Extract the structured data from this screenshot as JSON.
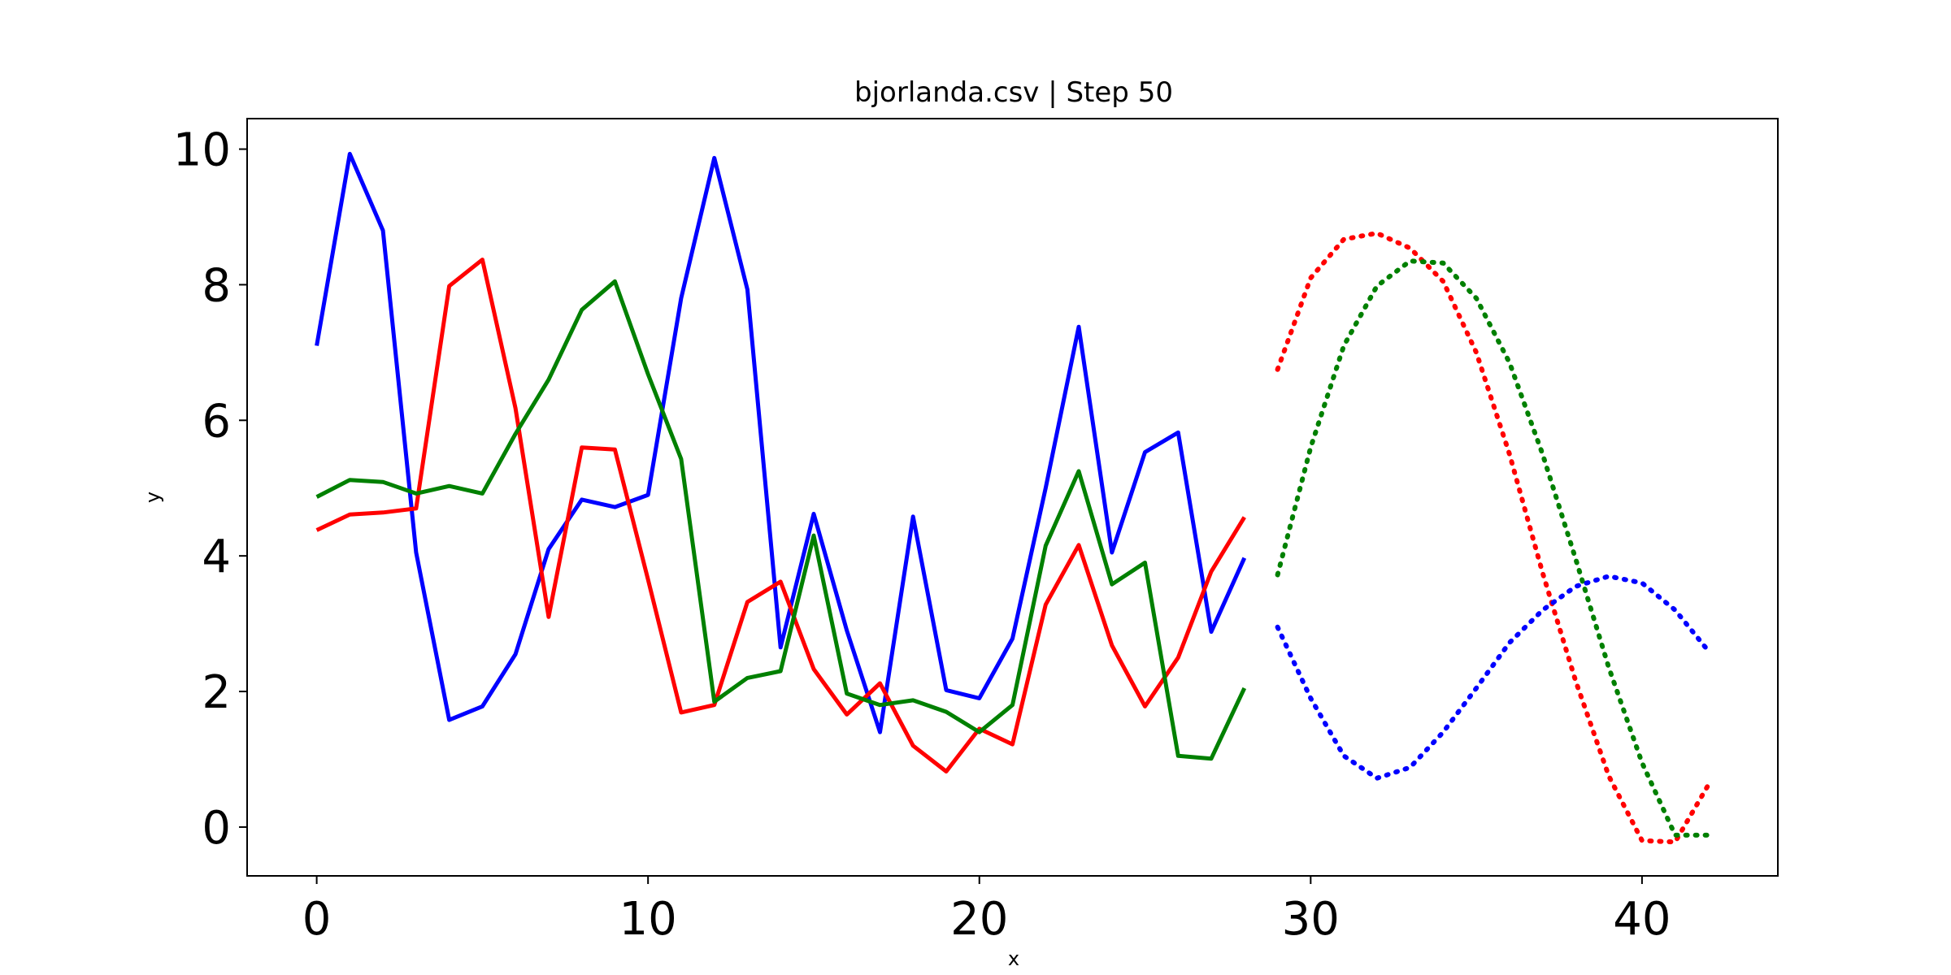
{
  "chart_data": {
    "type": "line",
    "title": "bjorlanda.csv | Step 50",
    "xlabel": "x",
    "ylabel": "y",
    "xlim": [
      -2.1,
      44.1
    ],
    "ylim": [
      -0.72,
      10.45
    ],
    "xticks": [
      0,
      10,
      20,
      30,
      40
    ],
    "yticks": [
      0,
      2,
      4,
      6,
      8,
      10
    ],
    "grid": false,
    "series": [
      {
        "color": "#0000ff",
        "style": "solid",
        "x": [
          0,
          1,
          2,
          3,
          4,
          5,
          6,
          7,
          8,
          9,
          10,
          11,
          12,
          13,
          14,
          15,
          16,
          17,
          18,
          19,
          20,
          21,
          22,
          23,
          24,
          25,
          26,
          27,
          28
        ],
        "values": [
          7.1,
          9.93,
          8.8,
          4.05,
          1.58,
          1.78,
          2.55,
          4.1,
          4.83,
          4.72,
          4.9,
          7.8,
          9.87,
          7.93,
          2.65,
          4.62,
          2.9,
          1.4,
          4.58,
          2.02,
          1.9,
          2.78,
          5.0,
          7.38,
          4.05,
          5.53,
          5.82,
          2.88,
          3.97
        ]
      },
      {
        "color": "#ff0000",
        "style": "solid",
        "x": [
          0,
          1,
          2,
          3,
          4,
          5,
          6,
          7,
          8,
          9,
          10,
          11,
          12,
          13,
          14,
          15,
          16,
          17,
          18,
          19,
          20,
          21,
          22,
          23,
          24,
          25,
          26,
          27,
          28
        ],
        "values": [
          4.38,
          4.61,
          4.64,
          4.7,
          7.98,
          8.37,
          6.18,
          3.1,
          5.6,
          5.57,
          3.65,
          1.69,
          1.8,
          3.32,
          3.62,
          2.33,
          1.66,
          2.12,
          1.2,
          0.82,
          1.45,
          1.22,
          3.28,
          4.16,
          2.68,
          1.78,
          2.5,
          3.77,
          4.57
        ]
      },
      {
        "color": "#008000",
        "style": "solid",
        "x": [
          0,
          1,
          2,
          3,
          4,
          5,
          6,
          7,
          8,
          9,
          10,
          11,
          12,
          13,
          14,
          15,
          16,
          17,
          18,
          19,
          20,
          21,
          22,
          23,
          24,
          25,
          26,
          27,
          28
        ],
        "values": [
          4.87,
          5.12,
          5.09,
          4.92,
          5.03,
          4.92,
          5.8,
          6.6,
          7.63,
          8.05,
          6.68,
          5.43,
          1.85,
          2.2,
          2.3,
          4.3,
          1.97,
          1.8,
          1.87,
          1.7,
          1.4,
          1.8,
          4.15,
          5.25,
          3.58,
          3.9,
          1.05,
          1.01,
          2.05
        ]
      },
      {
        "color": "#ff0000",
        "style": "dotted",
        "x": [
          29,
          30,
          31,
          32,
          33,
          34,
          35,
          36,
          37,
          38,
          39,
          40,
          41,
          42
        ],
        "values": [
          6.75,
          8.1,
          8.67,
          8.76,
          8.54,
          8.05,
          7.0,
          5.5,
          3.75,
          2.15,
          0.75,
          -0.2,
          -0.22,
          0.62
        ]
      },
      {
        "color": "#008000",
        "style": "dotted",
        "x": [
          29,
          30,
          31,
          32,
          33,
          34,
          35,
          36,
          37,
          38,
          39,
          40,
          41,
          42
        ],
        "values": [
          3.72,
          5.6,
          7.1,
          7.98,
          8.35,
          8.32,
          7.8,
          6.85,
          5.5,
          3.95,
          2.35,
          0.95,
          -0.12,
          -0.12
        ]
      },
      {
        "color": "#0000ff",
        "style": "dotted",
        "x": [
          29,
          30,
          31,
          32,
          33,
          34,
          35,
          36,
          37,
          38,
          39,
          40,
          41,
          42
        ],
        "values": [
          2.95,
          1.9,
          1.05,
          0.72,
          0.88,
          1.4,
          2.05,
          2.72,
          3.2,
          3.55,
          3.7,
          3.6,
          3.2,
          2.6
        ]
      }
    ]
  }
}
